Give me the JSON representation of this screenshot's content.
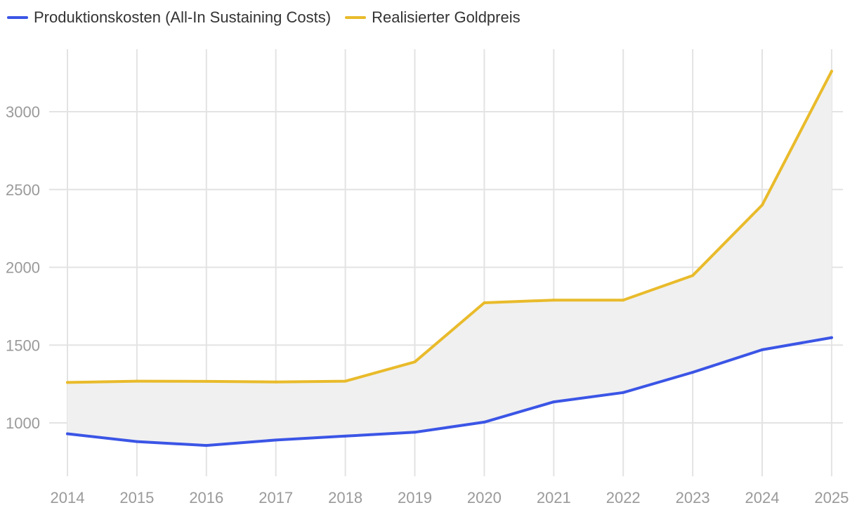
{
  "chart_data": {
    "type": "line",
    "title": "",
    "xlabel": "",
    "ylabel": "",
    "categories": [
      "2014",
      "2015",
      "2016",
      "2017",
      "2018",
      "2019",
      "2020",
      "2021",
      "2022",
      "2023",
      "2024",
      "2025"
    ],
    "series": [
      {
        "name": "Produktionskosten (All-In Sustaining Costs)",
        "color": "#3b55e6",
        "values": [
          930,
          880,
          855,
          890,
          915,
          940,
          1005,
          1135,
          1195,
          1325,
          1470,
          1548
        ]
      },
      {
        "name": "Realisierter Goldpreis",
        "color": "#e9bb2b",
        "values": [
          1260,
          1268,
          1267,
          1263,
          1268,
          1392,
          1772,
          1789,
          1789,
          1947,
          2400,
          3260
        ]
      }
    ],
    "fill_between": {
      "color": "#f0f0f0"
    },
    "yticks": [
      1000,
      1500,
      2000,
      2500,
      3000
    ],
    "ylim": [
      760,
      3400
    ],
    "grid": true,
    "legend_position": "top-left"
  }
}
